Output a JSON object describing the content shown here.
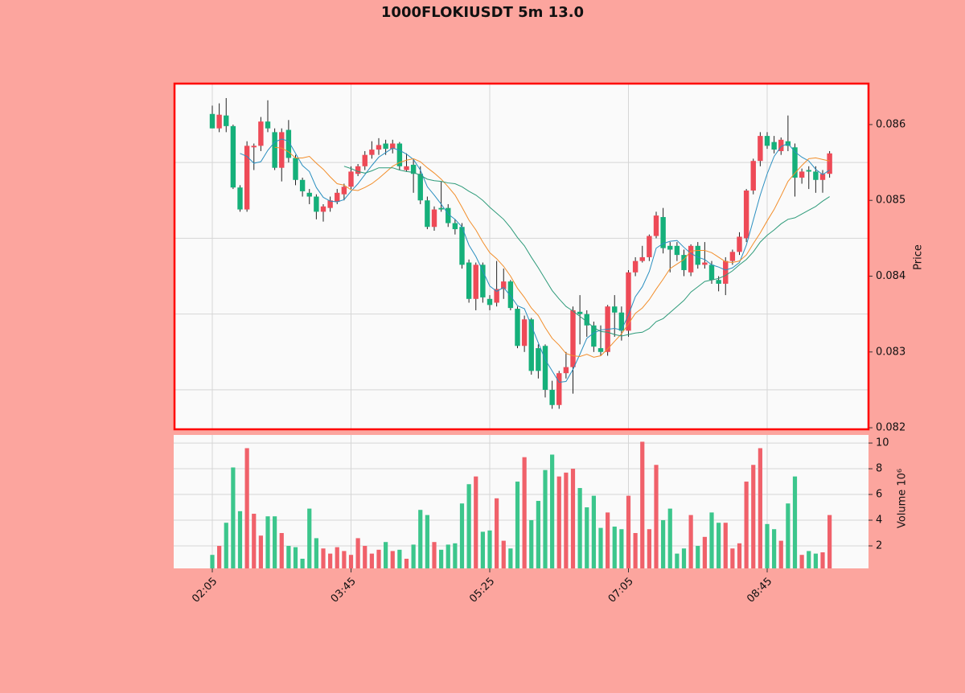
{
  "chart_data": {
    "type": "candlestick",
    "title": "1000FLOKIUSDT 5m 13.0",
    "ylabel": "Price",
    "y2label": "Volume  10⁶",
    "x": [
      "02:05",
      "02:10",
      "02:15",
      "02:20",
      "02:25",
      "02:30",
      "02:35",
      "02:40",
      "02:45",
      "02:50",
      "02:55",
      "03:00",
      "03:05",
      "03:10",
      "03:15",
      "03:20",
      "03:25",
      "03:30",
      "03:35",
      "03:40",
      "03:45",
      "03:50",
      "03:55",
      "04:00",
      "04:05",
      "04:10",
      "04:15",
      "04:20",
      "04:25",
      "04:30",
      "04:35",
      "04:40",
      "04:45",
      "04:50",
      "04:55",
      "05:00",
      "05:05",
      "05:10",
      "05:15",
      "05:20",
      "05:25",
      "05:30",
      "05:35",
      "05:40",
      "05:45",
      "05:50",
      "05:55",
      "06:00",
      "06:05",
      "06:10",
      "06:15",
      "06:20",
      "06:25",
      "06:30",
      "06:35",
      "06:40",
      "06:45",
      "06:50",
      "06:55",
      "07:00",
      "07:05",
      "07:10",
      "07:15",
      "07:20",
      "07:25",
      "07:30",
      "07:35",
      "07:40",
      "07:45",
      "07:50",
      "07:55",
      "08:00",
      "08:05",
      "08:10",
      "08:15",
      "08:20",
      "08:25",
      "08:30",
      "08:35",
      "08:40",
      "08:45",
      "08:50",
      "08:55",
      "09:00",
      "09:05",
      "09:10",
      "09:15",
      "09:20",
      "09:25",
      "09:30"
    ],
    "xticks": [
      "02:05",
      "03:45",
      "05:25",
      "07:05",
      "08:45"
    ],
    "open": [
      0.08614,
      0.08595,
      0.08612,
      0.08598,
      0.08517,
      0.08488,
      0.0857,
      0.08572,
      0.08604,
      0.0859,
      0.08543,
      0.08593,
      0.08556,
      0.08527,
      0.0851,
      0.08505,
      0.08485,
      0.0849,
      0.08498,
      0.08508,
      0.08518,
      0.08535,
      0.08545,
      0.0856,
      0.08567,
      0.08575,
      0.08568,
      0.08575,
      0.0854,
      0.08547,
      0.08535,
      0.085,
      0.08465,
      0.0849,
      0.0849,
      0.0847,
      0.08465,
      0.08418,
      0.0837,
      0.08415,
      0.0837,
      0.08365,
      0.08383,
      0.08393,
      0.08357,
      0.08308,
      0.08343,
      0.08305,
      0.08308,
      0.0825,
      0.0823,
      0.08272,
      0.0828,
      0.08353,
      0.0835,
      0.08335,
      0.08305,
      0.083,
      0.0836,
      0.08352,
      0.08328,
      0.08405,
      0.0842,
      0.08425,
      0.08453,
      0.08478,
      0.0844,
      0.0844,
      0.08428,
      0.08405,
      0.0844,
      0.08415,
      0.08415,
      0.08395,
      0.0839,
      0.0842,
      0.08432,
      0.0845,
      0.08513,
      0.08552,
      0.08585,
      0.08577,
      0.08565,
      0.08578,
      0.0857,
      0.0853,
      0.0854,
      0.08538,
      0.08527,
      0.08535
    ],
    "high": [
      0.08625,
      0.08628,
      0.08635,
      0.086,
      0.0852,
      0.08578,
      0.08575,
      0.0861,
      0.08632,
      0.08595,
      0.08595,
      0.08606,
      0.0856,
      0.0853,
      0.08515,
      0.08508,
      0.08495,
      0.08505,
      0.08515,
      0.08522,
      0.08545,
      0.08548,
      0.08565,
      0.08578,
      0.08582,
      0.0858,
      0.0858,
      0.08577,
      0.08562,
      0.08555,
      0.08545,
      0.08505,
      0.08492,
      0.08525,
      0.08495,
      0.08475,
      0.0847,
      0.08422,
      0.08418,
      0.08418,
      0.08375,
      0.0842,
      0.0841,
      0.08395,
      0.0836,
      0.08348,
      0.08345,
      0.0831,
      0.0831,
      0.08262,
      0.08275,
      0.083,
      0.0836,
      0.08375,
      0.08355,
      0.0834,
      0.08335,
      0.08362,
      0.08375,
      0.0836,
      0.08408,
      0.08425,
      0.0844,
      0.08455,
      0.08485,
      0.0849,
      0.08445,
      0.08445,
      0.08435,
      0.08442,
      0.08445,
      0.08445,
      0.0842,
      0.084,
      0.08425,
      0.08435,
      0.08458,
      0.08515,
      0.08555,
      0.0859,
      0.0859,
      0.08585,
      0.08583,
      0.08612,
      0.08575,
      0.08542,
      0.08545,
      0.08545,
      0.0854,
      0.08565
    ],
    "low": [
      0.08595,
      0.0859,
      0.0859,
      0.08515,
      0.08485,
      0.08485,
      0.0854,
      0.08565,
      0.0859,
      0.0854,
      0.08525,
      0.0855,
      0.0852,
      0.08505,
      0.08495,
      0.08475,
      0.08472,
      0.08485,
      0.08495,
      0.085,
      0.08515,
      0.08532,
      0.0854,
      0.08555,
      0.0856,
      0.0856,
      0.08562,
      0.0854,
      0.08538,
      0.0851,
      0.08495,
      0.08462,
      0.0846,
      0.08485,
      0.08465,
      0.08455,
      0.0841,
      0.08365,
      0.08355,
      0.08365,
      0.08355,
      0.0836,
      0.0837,
      0.08355,
      0.08305,
      0.083,
      0.0827,
      0.08265,
      0.0824,
      0.08225,
      0.08225,
      0.08265,
      0.08245,
      0.0831,
      0.0832,
      0.083,
      0.08295,
      0.08295,
      0.0832,
      0.08315,
      0.0832,
      0.084,
      0.08418,
      0.0842,
      0.0845,
      0.0843,
      0.08405,
      0.0842,
      0.084,
      0.084,
      0.0841,
      0.0841,
      0.0839,
      0.0838,
      0.08375,
      0.08415,
      0.08428,
      0.08445,
      0.08508,
      0.08545,
      0.08568,
      0.08562,
      0.0856,
      0.08565,
      0.08505,
      0.08522,
      0.08515,
      0.0851,
      0.0851,
      0.0853
    ],
    "close": [
      0.08595,
      0.08613,
      0.08598,
      0.08517,
      0.08488,
      0.08572,
      0.08572,
      0.08604,
      0.08595,
      0.08543,
      0.0859,
      0.08556,
      0.08527,
      0.08512,
      0.08505,
      0.08485,
      0.08492,
      0.085,
      0.0851,
      0.08518,
      0.08538,
      0.08545,
      0.0856,
      0.08567,
      0.08573,
      0.08568,
      0.08575,
      0.08545,
      0.08545,
      0.08535,
      0.085,
      0.08465,
      0.08488,
      0.08488,
      0.0847,
      0.08462,
      0.08415,
      0.0837,
      0.08415,
      0.08372,
      0.08362,
      0.08383,
      0.08393,
      0.08358,
      0.08308,
      0.08343,
      0.08275,
      0.08275,
      0.0825,
      0.0823,
      0.08272,
      0.0828,
      0.08355,
      0.0835,
      0.08335,
      0.08307,
      0.083,
      0.0836,
      0.08352,
      0.08328,
      0.08405,
      0.0842,
      0.08425,
      0.08453,
      0.0848,
      0.08437,
      0.08435,
      0.08428,
      0.08408,
      0.0844,
      0.08415,
      0.08418,
      0.08395,
      0.0839,
      0.0842,
      0.08432,
      0.08452,
      0.08513,
      0.08552,
      0.08585,
      0.08572,
      0.08567,
      0.0858,
      0.08572,
      0.0853,
      0.08538,
      0.08538,
      0.08527,
      0.08535,
      0.08562
    ],
    "volume": [
      1.3,
      2.0,
      3.8,
      8.1,
      4.7,
      9.6,
      4.5,
      2.8,
      4.3,
      4.3,
      3.0,
      2.0,
      1.9,
      1.0,
      4.9,
      2.6,
      1.8,
      1.4,
      1.9,
      1.6,
      1.3,
      2.6,
      2.0,
      1.4,
      1.7,
      2.3,
      1.6,
      1.7,
      1.0,
      2.1,
      4.8,
      4.4,
      2.3,
      1.7,
      2.1,
      2.2,
      5.3,
      6.8,
      7.4,
      3.1,
      3.2,
      5.7,
      2.4,
      1.8,
      7.0,
      8.9,
      4.0,
      5.5,
      7.9,
      9.1,
      7.4,
      7.7,
      8.0,
      6.5,
      5.0,
      5.9,
      3.4,
      4.6,
      3.5,
      3.3,
      5.9,
      3.0,
      10.1,
      3.3,
      8.3,
      4.0,
      4.9,
      1.4,
      1.8,
      4.4,
      2.0,
      2.7,
      4.6,
      3.8,
      3.8,
      1.8,
      2.2,
      7.0,
      8.3,
      9.6,
      3.7,
      3.3,
      2.4,
      5.3,
      7.4,
      1.3,
      1.6,
      1.4,
      1.5,
      4.4
    ],
    "series": [
      {
        "color": "#2a8fc0",
        "values": [
          null,
          null,
          null,
          null,
          0.08562,
          0.08558,
          0.08549,
          0.08551,
          0.08566,
          0.08577,
          0.08581,
          0.08578,
          0.08562,
          0.08546,
          0.08538,
          0.08517,
          0.08504,
          0.08499,
          0.08498,
          0.08501,
          0.08512,
          0.08522,
          0.08534,
          0.08546,
          0.08557,
          0.08563,
          0.08569,
          0.08566,
          0.08561,
          0.08554,
          0.0854,
          0.08518,
          0.08507,
          0.08495,
          0.08482,
          0.08475,
          0.08465,
          0.08441,
          0.08426,
          0.08407,
          0.08387,
          0.0838,
          0.08385,
          0.08374,
          0.08361,
          0.08357,
          0.08335,
          0.08312,
          0.0829,
          0.08275,
          0.0826,
          0.08261,
          0.08277,
          0.08297,
          0.08318,
          0.08325,
          0.08329,
          0.0833,
          0.08331,
          0.08329,
          0.08349,
          0.08373,
          0.08386,
          0.08406,
          0.08437,
          0.08443,
          0.08446,
          0.08447,
          0.08438,
          0.0843,
          0.08425,
          0.08422,
          0.08415,
          0.08412,
          0.08408,
          0.08411,
          0.08418,
          0.08441,
          0.08474,
          0.08507,
          0.08535,
          0.08558,
          0.08571,
          0.08575,
          0.08564,
          0.08557,
          0.08552,
          0.08541,
          0.08534,
          0.0854
        ]
      },
      {
        "color": "#f28e2b",
        "values": [
          null,
          null,
          null,
          null,
          null,
          null,
          null,
          null,
          null,
          0.0857,
          0.08569,
          0.08564,
          0.08556,
          0.08556,
          0.08558,
          0.08549,
          0.08541,
          0.08531,
          0.08522,
          0.0852,
          0.08514,
          0.08513,
          0.08517,
          0.08522,
          0.08529,
          0.08537,
          0.08545,
          0.0855,
          0.08553,
          0.08555,
          0.08551,
          0.08543,
          0.08536,
          0.08528,
          0.08518,
          0.08507,
          0.08491,
          0.08474,
          0.08461,
          0.08445,
          0.08431,
          0.08423,
          0.08413,
          0.084,
          0.08384,
          0.08372,
          0.08358,
          0.08348,
          0.08332,
          0.08318,
          0.08309,
          0.08298,
          0.08295,
          0.08294,
          0.08297,
          0.08293,
          0.08295,
          0.08304,
          0.08314,
          0.08324,
          0.08337,
          0.08351,
          0.08358,
          0.08369,
          0.08383,
          0.08396,
          0.0841,
          0.08416,
          0.08422,
          0.08433,
          0.08434,
          0.08434,
          0.08431,
          0.08425,
          0.08419,
          0.08418,
          0.0842,
          0.08428,
          0.08443,
          0.08457,
          0.08473,
          0.08488,
          0.08506,
          0.08525,
          0.08536,
          0.08546,
          0.08555,
          0.08556,
          0.08554,
          0.08552
        ]
      },
      {
        "color": "#2e9b7a",
        "values": [
          null,
          null,
          null,
          null,
          null,
          null,
          null,
          null,
          null,
          null,
          null,
          null,
          null,
          null,
          null,
          null,
          null,
          null,
          null,
          0.08545,
          0.08542,
          0.08538,
          0.08536,
          0.08539,
          0.08543,
          0.08543,
          0.08543,
          0.0854,
          0.08538,
          0.08537,
          0.08533,
          0.08528,
          0.08526,
          0.08525,
          0.08523,
          0.08522,
          0.08518,
          0.08512,
          0.08507,
          0.085,
          0.08491,
          0.08483,
          0.08475,
          0.08464,
          0.08451,
          0.0844,
          0.08425,
          0.08411,
          0.08396,
          0.08381,
          0.0837,
          0.0836,
          0.08354,
          0.08347,
          0.0834,
          0.08332,
          0.08327,
          0.08326,
          0.08323,
          0.08321,
          0.08323,
          0.08325,
          0.08326,
          0.08331,
          0.0834,
          0.08344,
          0.08352,
          0.0836,
          0.08368,
          0.08379,
          0.08386,
          0.08393,
          0.08395,
          0.08397,
          0.08401,
          0.08407,
          0.08415,
          0.08422,
          0.08432,
          0.08445,
          0.08454,
          0.08461,
          0.08469,
          0.08475,
          0.08477,
          0.08482,
          0.08487,
          0.08492,
          0.08499,
          0.08505
        ]
      }
    ],
    "up_color": "#ee4a57",
    "down_color": "#15b07a",
    "volume_up_color": "#f0616a",
    "volume_down_color": "#3cc68c",
    "ylim": [
      0.08199,
      0.08653
    ],
    "yticks": [
      0.082,
      0.083,
      0.084,
      0.085,
      0.086
    ],
    "ygrid": [
      0.0825,
      0.0835,
      0.0845,
      0.0855
    ],
    "y2lim": [
      0.25,
      10.63
    ],
    "y2ticks": [
      2,
      4,
      6,
      8,
      10
    ],
    "grid": true
  }
}
